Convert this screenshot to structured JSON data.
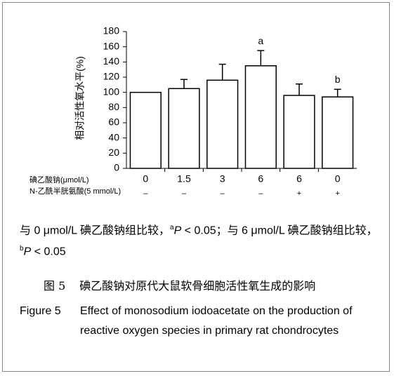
{
  "chart_data": {
    "type": "bar",
    "ylabel": "相对活性氧水平(%)",
    "row_labels": [
      "碘乙酸钠(μmol/L)",
      "N-乙酰半胱氨酸(5 mmol/L)"
    ],
    "categories": [
      "0",
      "1.5",
      "3",
      "6",
      "6",
      "0"
    ],
    "treatment": [
      "–",
      "–",
      "–",
      "–",
      "+",
      "+"
    ],
    "values": [
      100,
      105,
      116,
      135,
      96,
      94
    ],
    "errors": [
      null,
      12,
      21,
      20,
      15,
      10
    ],
    "annotations": [
      null,
      null,
      null,
      "a",
      null,
      "b"
    ],
    "color": "#ffffff",
    "ylim": [
      0,
      180
    ],
    "yticks": [
      0,
      20,
      40,
      60,
      80,
      100,
      120,
      140,
      160,
      180
    ]
  },
  "note": [
    "与 0 μmol/L 碘乙酸钠组比较，",
    "a",
    "P",
    " < 0.05；与 6 μmol/L 碘乙酸钠组比较，",
    "b",
    "P",
    " < 0.05"
  ],
  "caption_cn": {
    "label": "图 5",
    "text": "碘乙酸钠对原代大鼠软骨细胞活性氧生成的影响"
  },
  "caption_en": {
    "label": "Figure 5",
    "text": "Effect of monosodium iodoacetate on the production of reactive oxygen species in primary rat chondrocytes"
  }
}
